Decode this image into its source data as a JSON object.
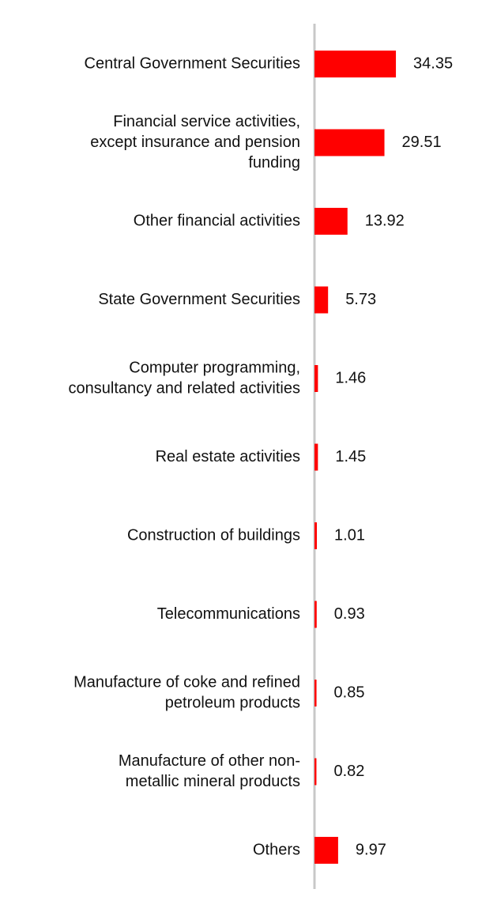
{
  "chart_data": {
    "type": "bar",
    "orientation": "horizontal",
    "categories": [
      [
        "Central Government Securities"
      ],
      [
        "Financial service activities,",
        "except insurance and pension",
        "funding"
      ],
      [
        "Other financial activities"
      ],
      [
        "State Government Securities"
      ],
      [
        "Computer programming,",
        "consultancy and related activities"
      ],
      [
        "Real estate activities"
      ],
      [
        "Construction of buildings"
      ],
      [
        "Telecommunications"
      ],
      [
        "Manufacture of coke and refined",
        "petroleum products"
      ],
      [
        "Manufacture of other non-",
        "metallic mineral products"
      ],
      [
        "Others"
      ]
    ],
    "values": [
      34.35,
      29.51,
      13.92,
      5.73,
      1.46,
      1.45,
      1.01,
      0.93,
      0.85,
      0.82,
      9.97
    ],
    "value_labels": [
      "34.35",
      "29.51",
      "13.92",
      "5.73",
      "1.46",
      "1.45",
      "1.01",
      "0.93",
      "0.85",
      "0.82",
      "9.97"
    ],
    "xlim": [
      0,
      70
    ],
    "grid": false,
    "legend": "none",
    "bar_color": "#ff0000",
    "axis_color": "#c8c8c8"
  }
}
